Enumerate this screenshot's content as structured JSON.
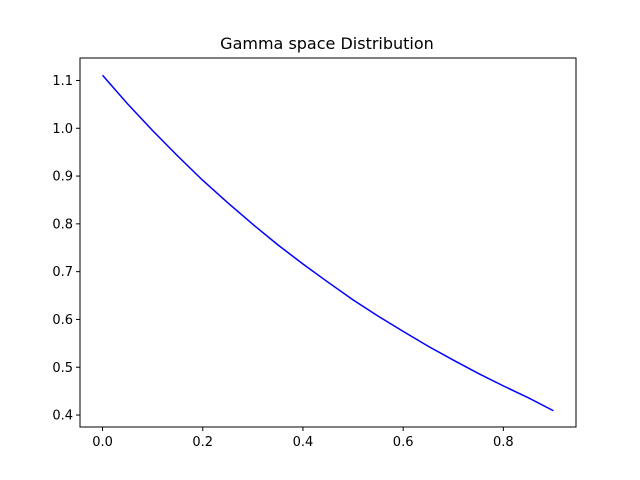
{
  "chart_data": {
    "type": "line",
    "title": "Gamma space Distribution",
    "xlabel": "",
    "ylabel": "",
    "xlim": [
      -0.045,
      0.945
    ],
    "ylim": [
      0.375,
      1.147
    ],
    "x_ticks": [
      0.0,
      0.2,
      0.4,
      0.6,
      0.8
    ],
    "x_tick_labels": [
      "0.0",
      "0.2",
      "0.4",
      "0.6",
      "0.8"
    ],
    "y_ticks": [
      0.4,
      0.5,
      0.6,
      0.7,
      0.8,
      0.9,
      1.0,
      1.1
    ],
    "y_tick_labels": [
      "0.4",
      "0.5",
      "0.6",
      "0.7",
      "0.8",
      "0.9",
      "1.0",
      "1.1"
    ],
    "grid": false,
    "series": [
      {
        "color": "#0000ff",
        "x": [
          0.0,
          0.05,
          0.1,
          0.15,
          0.2,
          0.25,
          0.3,
          0.35,
          0.4,
          0.45,
          0.5,
          0.55,
          0.6,
          0.65,
          0.7,
          0.75,
          0.8,
          0.85,
          0.9
        ],
        "y": [
          1.111,
          1.051,
          0.995,
          0.942,
          0.891,
          0.844,
          0.799,
          0.756,
          0.716,
          0.678,
          0.641,
          0.607,
          0.575,
          0.544,
          0.515,
          0.487,
          0.461,
          0.436,
          0.409
        ]
      }
    ]
  }
}
